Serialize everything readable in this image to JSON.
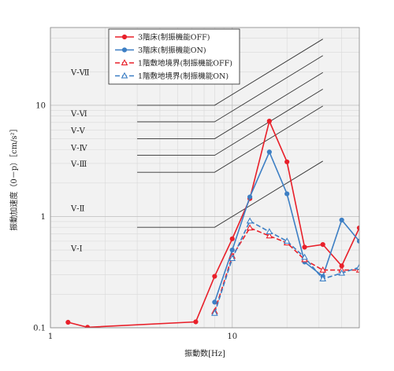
{
  "chart_data": {
    "type": "line",
    "xscale": "log",
    "yscale": "log",
    "xlim": [
      1,
      50
    ],
    "ylim": [
      0.1,
      50
    ],
    "xlabel": "振動数[Hz]",
    "ylabel": "振動加速度（0－p）［cm/s²］",
    "x_ticks": [
      {
        "value": 1,
        "label": "1"
      },
      {
        "value": 10,
        "label": "10"
      }
    ],
    "y_ticks": [
      {
        "value": 0.1,
        "label": "0.1"
      },
      {
        "value": 1,
        "label": "1"
      },
      {
        "value": 10,
        "label": "10"
      }
    ],
    "grid": true,
    "legend": "top-center",
    "series": [
      {
        "name": "3階床(制振機能OFF)",
        "color": "#e8202a",
        "dash": "solid",
        "marker": "circle",
        "points": [
          [
            1.25,
            0.112
          ],
          [
            1.6,
            0.101
          ],
          [
            6.3,
            0.113
          ],
          [
            8,
            0.29
          ],
          [
            10,
            0.63
          ],
          [
            12.5,
            1.45
          ],
          [
            16,
            7.2
          ],
          [
            20,
            3.1
          ],
          [
            25,
            0.53
          ],
          [
            31.5,
            0.56
          ],
          [
            40,
            0.36
          ],
          [
            50,
            0.79
          ]
        ]
      },
      {
        "name": "3階床(制振機能ON)",
        "color": "#3d7fc4",
        "dash": "solid",
        "marker": "circle",
        "points": [
          [
            8,
            0.17
          ],
          [
            10,
            0.5
          ],
          [
            12.5,
            1.5
          ],
          [
            16,
            3.8
          ],
          [
            20,
            1.6
          ],
          [
            25,
            0.39
          ],
          [
            31.5,
            0.29
          ],
          [
            40,
            0.93
          ],
          [
            50,
            0.6
          ]
        ]
      },
      {
        "name": "1階敷地境界(制振機能OFF)",
        "color": "#e8202a",
        "dash": "dashed",
        "marker": "triangle",
        "points": [
          [
            8,
            0.14
          ],
          [
            10,
            0.44
          ],
          [
            12.5,
            0.79
          ],
          [
            16,
            0.67
          ],
          [
            20,
            0.58
          ],
          [
            25,
            0.41
          ],
          [
            31.5,
            0.33
          ],
          [
            40,
            0.33
          ],
          [
            50,
            0.33
          ]
        ]
      },
      {
        "name": "1階敷地境界(制振機能ON)",
        "color": "#3d7fc4",
        "dash": "dashed",
        "marker": "triangle",
        "points": [
          [
            8,
            0.135
          ],
          [
            10,
            0.42
          ],
          [
            12.5,
            0.91
          ],
          [
            16,
            0.73
          ],
          [
            20,
            0.6
          ],
          [
            25,
            0.43
          ],
          [
            31.5,
            0.275
          ],
          [
            40,
            0.31
          ],
          [
            50,
            0.35
          ]
        ]
      }
    ],
    "criteria_lines": [
      {
        "label": "V‐Ⅶ",
        "level": 10,
        "label_y": 20,
        "from_hz": 3,
        "knee_hz": 8,
        "to_hz": 31.5
      },
      {
        "label": "V‐Ⅵ",
        "level": 7.1,
        "label_y": 8.5,
        "from_hz": 3,
        "knee_hz": 8,
        "to_hz": 31.5
      },
      {
        "label": "V‐Ⅴ",
        "level": 5,
        "label_y": 6,
        "from_hz": 3,
        "knee_hz": 8,
        "to_hz": 31.5
      },
      {
        "label": "V‐Ⅳ",
        "level": 3.55,
        "label_y": 4.2,
        "from_hz": 3,
        "knee_hz": 8,
        "to_hz": 31.5
      },
      {
        "label": "V‐Ⅲ",
        "level": 2.5,
        "label_y": 3,
        "from_hz": 3,
        "knee_hz": 8,
        "to_hz": 31.5
      },
      {
        "label": "V‐Ⅱ",
        "level": 0.8,
        "label_y": 1.2,
        "from_hz": 3,
        "knee_hz": 8,
        "to_hz": 31.5
      },
      {
        "label": "V‐Ⅰ",
        "level": null,
        "label_y": 0.52,
        "from_hz": null,
        "knee_hz": null,
        "to_hz": null
      }
    ]
  }
}
